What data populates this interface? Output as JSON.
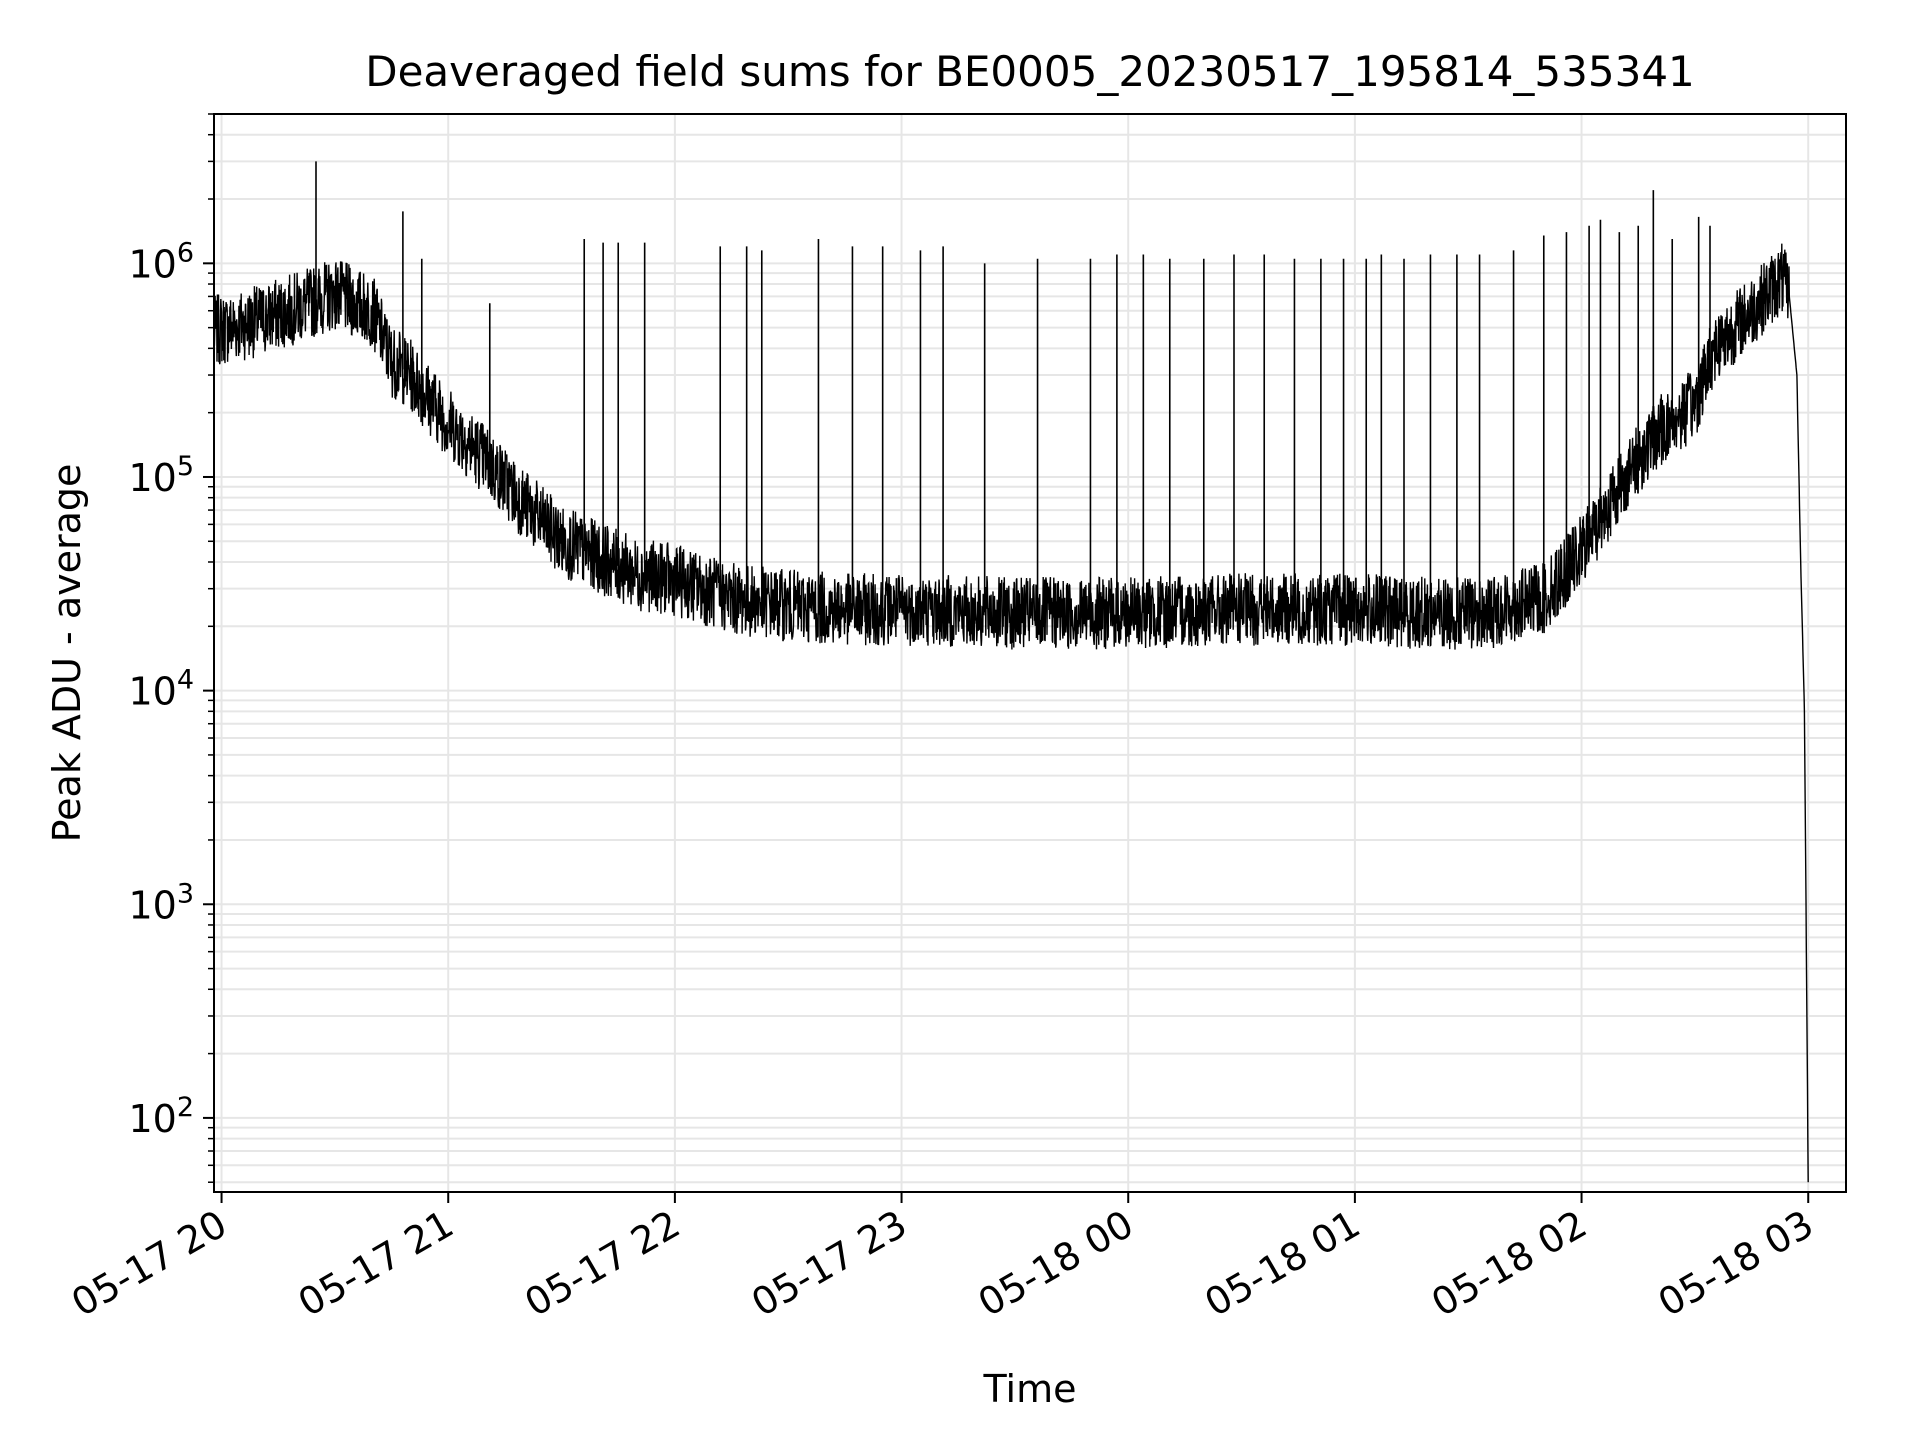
{
  "chart_data": {
    "type": "line",
    "title": "Deaveraged field sums for BE0005_20230517_195814_535341",
    "xlabel": "Time",
    "ylabel": "Peak ADU - average",
    "yscale": "log",
    "xlim": [
      "2023-05-17T19:58",
      "2023-05-18T03:10"
    ],
    "ylim": [
      45,
      5000000
    ],
    "grid": true,
    "grid_color": "#e6e6e6",
    "line_color": "#000000",
    "x_ticks": [
      {
        "value": "2023-05-17T20:00",
        "label": "05-17 20"
      },
      {
        "value": "2023-05-17T21:00",
        "label": "05-17 21"
      },
      {
        "value": "2023-05-17T22:00",
        "label": "05-17 22"
      },
      {
        "value": "2023-05-17T23:00",
        "label": "05-17 23"
      },
      {
        "value": "2023-05-18T00:00",
        "label": "05-18 00"
      },
      {
        "value": "2023-05-18T01:00",
        "label": "05-18 01"
      },
      {
        "value": "2023-05-18T02:00",
        "label": "05-18 02"
      },
      {
        "value": "2023-05-18T03:00",
        "label": "05-18 03"
      }
    ],
    "y_ticks": [
      {
        "value": 100,
        "base": "10",
        "exp": "2"
      },
      {
        "value": 1000,
        "base": "10",
        "exp": "3"
      },
      {
        "value": 10000,
        "base": "10",
        "exp": "4"
      },
      {
        "value": 100000,
        "base": "10",
        "exp": "5"
      },
      {
        "value": 1000000,
        "base": "10",
        "exp": "6"
      }
    ],
    "series": [
      {
        "baseline": {
          "x": [
            "2023-05-17T19:58",
            "2023-05-17T20:10",
            "2023-05-17T20:20",
            "2023-05-17T20:30",
            "2023-05-17T20:40",
            "2023-05-17T20:45",
            "2023-05-17T20:50",
            "2023-05-17T21:00",
            "2023-05-17T21:10",
            "2023-05-17T21:20",
            "2023-05-17T21:30",
            "2023-05-17T21:40",
            "2023-05-17T21:50",
            "2023-05-17T22:00",
            "2023-05-17T22:15",
            "2023-05-17T22:30",
            "2023-05-17T22:45",
            "2023-05-17T23:00",
            "2023-05-17T23:30",
            "2023-05-18T00:00",
            "2023-05-18T00:30",
            "2023-05-18T01:00",
            "2023-05-18T01:20",
            "2023-05-18T01:35",
            "2023-05-18T01:50",
            "2023-05-18T02:00",
            "2023-05-18T02:10",
            "2023-05-18T02:20",
            "2023-05-18T02:30",
            "2023-05-18T02:35",
            "2023-05-18T02:45",
            "2023-05-18T02:50",
            "2023-05-18T02:53",
            "2023-05-18T02:55",
            "2023-05-18T02:57",
            "2023-05-18T02:58",
            "2023-05-18T02:59",
            "2023-05-18T03:00"
          ],
          "y": [
            480000,
            540000,
            620000,
            720000,
            600000,
            350000,
            300000,
            180000,
            120000,
            75000,
            50000,
            42000,
            35000,
            33000,
            27000,
            25000,
            24000,
            24000,
            23000,
            23000,
            24000,
            24000,
            23000,
            23000,
            27000,
            45000,
            90000,
            160000,
            220000,
            400000,
            600000,
            750000,
            850000,
            700000,
            300000,
            40000,
            8000,
            50
          ]
        },
        "spikes": {
          "x": [
            "2023-05-17T20:25",
            "2023-05-17T20:33",
            "2023-05-17T20:48",
            "2023-05-17T20:53",
            "2023-05-17T21:11",
            "2023-05-17T21:36",
            "2023-05-17T21:41",
            "2023-05-17T21:45",
            "2023-05-17T21:52",
            "2023-05-17T22:12",
            "2023-05-17T22:19",
            "2023-05-17T22:23",
            "2023-05-17T22:38",
            "2023-05-17T22:47",
            "2023-05-17T22:55",
            "2023-05-17T23:05",
            "2023-05-17T23:11",
            "2023-05-17T23:22",
            "2023-05-17T23:36",
            "2023-05-17T23:50",
            "2023-05-17T23:57",
            "2023-05-18T00:04",
            "2023-05-18T00:11",
            "2023-05-18T00:20",
            "2023-05-18T00:28",
            "2023-05-18T00:36",
            "2023-05-18T00:44",
            "2023-05-18T00:51",
            "2023-05-18T00:57",
            "2023-05-18T01:03",
            "2023-05-18T01:07",
            "2023-05-18T01:13",
            "2023-05-18T01:20",
            "2023-05-18T01:27",
            "2023-05-18T01:33",
            "2023-05-18T01:42",
            "2023-05-18T01:50",
            "2023-05-18T01:56",
            "2023-05-18T02:02",
            "2023-05-18T02:05",
            "2023-05-18T02:10",
            "2023-05-18T02:15",
            "2023-05-18T02:19",
            "2023-05-18T02:24",
            "2023-05-18T02:31",
            "2023-05-18T02:34"
          ],
          "y": [
            3000000,
            1000000,
            1750000,
            1050000,
            650000,
            1300000,
            1250000,
            1250000,
            1250000,
            1200000,
            1200000,
            1150000,
            1300000,
            1200000,
            1200000,
            1150000,
            1200000,
            1000000,
            1050000,
            1050000,
            1100000,
            1100000,
            1050000,
            1050000,
            1100000,
            1100000,
            1050000,
            1050000,
            1050000,
            1050000,
            1100000,
            1050000,
            1100000,
            1100000,
            1100000,
            1150000,
            1350000,
            1400000,
            1500000,
            1600000,
            1400000,
            1500000,
            2200000,
            1300000,
            1650000,
            1500000
          ]
        }
      }
    ]
  }
}
